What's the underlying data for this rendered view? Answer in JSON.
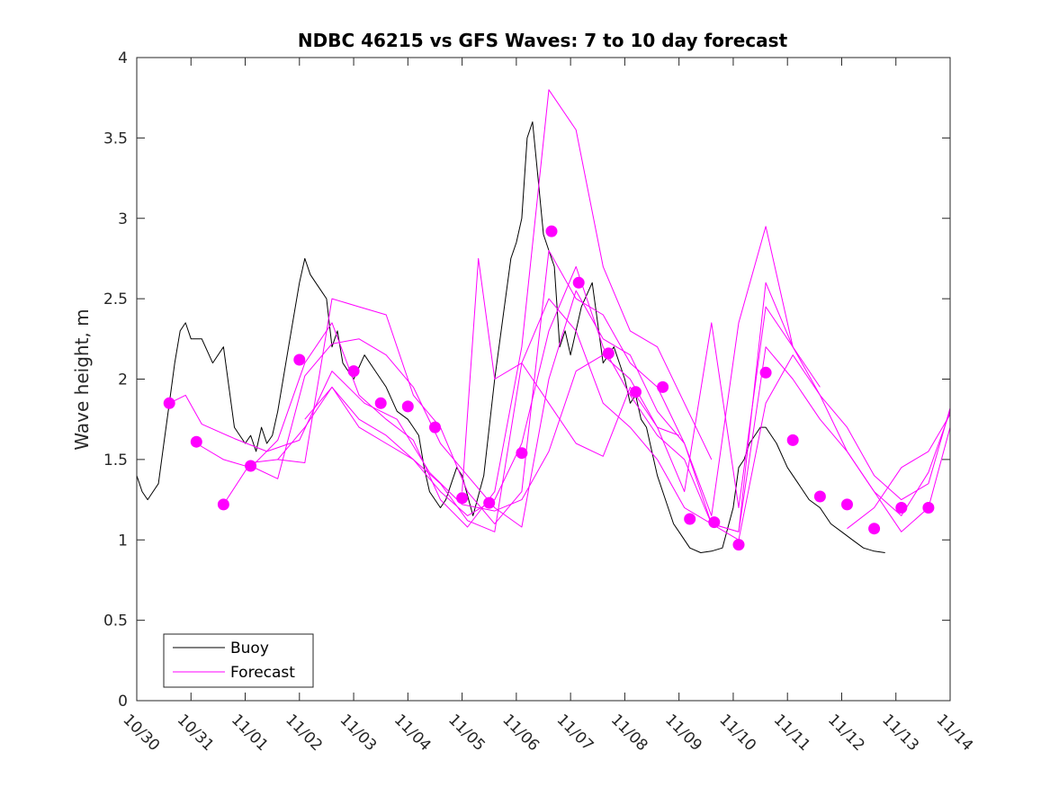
{
  "colors": {
    "buoy": "#000000",
    "forecast": "#ff00ff",
    "axis": "#262626"
  },
  "chart_data": {
    "type": "line",
    "title": "NDBC 46215 vs GFS Waves: 7 to 10 day forecast",
    "xlabel": "",
    "ylabel": "Wave height, m",
    "xlim": [
      0,
      15
    ],
    "ylim": [
      0,
      4
    ],
    "x_ticks": [
      0,
      1,
      2,
      3,
      4,
      5,
      6,
      7,
      8,
      9,
      10,
      11,
      12,
      13,
      14,
      15
    ],
    "x_tick_labels": [
      "10/30",
      "10/31",
      "11/01",
      "11/02",
      "11/03",
      "11/04",
      "11/05",
      "11/06",
      "11/07",
      "11/08",
      "11/09",
      "11/10",
      "11/11",
      "11/12",
      "11/13",
      "11/14"
    ],
    "y_ticks": [
      0,
      0.5,
      1,
      1.5,
      2,
      2.5,
      3,
      3.5,
      4
    ],
    "y_tick_labels": [
      "0",
      "0.5",
      "1",
      "1.5",
      "2",
      "2.5",
      "3",
      "3.5",
      "4"
    ],
    "legend": {
      "position": "bottom-left",
      "entries": [
        "Buoy",
        "Forecast"
      ]
    },
    "series": [
      {
        "name": "Buoy",
        "x": [
          0,
          0.1,
          0.2,
          0.3,
          0.4,
          0.5,
          0.6,
          0.7,
          0.8,
          0.9,
          1.0,
          1.2,
          1.4,
          1.6,
          1.8,
          1.9,
          2.0,
          2.1,
          2.2,
          2.3,
          2.4,
          2.5,
          2.6,
          2.8,
          3.0,
          3.1,
          3.2,
          3.3,
          3.4,
          3.5,
          3.6,
          3.7,
          3.8,
          3.9,
          4.0,
          4.2,
          4.4,
          4.6,
          4.8,
          5.0,
          5.1,
          5.2,
          5.3,
          5.4,
          5.5,
          5.6,
          5.7,
          5.8,
          5.9,
          6.0,
          6.2,
          6.4,
          6.6,
          6.8,
          6.9,
          7.0,
          7.1,
          7.2,
          7.3,
          7.4,
          7.5,
          7.6,
          7.7,
          7.8,
          7.9,
          8.0,
          8.2,
          8.4,
          8.6,
          8.8,
          8.9,
          9.0,
          9.1,
          9.2,
          9.3,
          9.4,
          9.5,
          9.6,
          9.7,
          9.8,
          9.9,
          10.0,
          10.2,
          10.4,
          10.6,
          10.8,
          11.0,
          11.1,
          11.2,
          11.3,
          11.4,
          11.5,
          11.6,
          11.8,
          12.0,
          12.2,
          12.4,
          12.6,
          12.8,
          13.0,
          13.2,
          13.4,
          13.6,
          13.8
        ],
        "values": [
          1.4,
          1.3,
          1.25,
          1.3,
          1.35,
          1.6,
          1.85,
          2.1,
          2.3,
          2.35,
          2.25,
          2.25,
          2.1,
          2.2,
          1.7,
          1.65,
          1.6,
          1.65,
          1.55,
          1.7,
          1.6,
          1.65,
          1.8,
          2.2,
          2.6,
          2.75,
          2.65,
          2.6,
          2.55,
          2.5,
          2.2,
          2.3,
          2.1,
          2.05,
          2.0,
          2.15,
          2.05,
          1.95,
          1.8,
          1.75,
          1.7,
          1.65,
          1.45,
          1.3,
          1.25,
          1.2,
          1.25,
          1.35,
          1.45,
          1.4,
          1.15,
          1.4,
          2.0,
          2.5,
          2.75,
          2.85,
          3.0,
          3.5,
          3.6,
          3.25,
          2.9,
          2.8,
          2.7,
          2.2,
          2.3,
          2.15,
          2.45,
          2.6,
          2.1,
          2.2,
          2.1,
          2.0,
          1.85,
          1.9,
          1.75,
          1.7,
          1.55,
          1.4,
          1.3,
          1.2,
          1.1,
          1.05,
          0.95,
          0.92,
          0.93,
          0.95,
          1.2,
          1.45,
          1.5,
          1.6,
          1.65,
          1.7,
          1.7,
          1.6,
          1.45,
          1.35,
          1.25,
          1.2,
          1.1,
          1.05,
          1.0,
          0.95,
          0.93,
          0.92
        ]
      },
      {
        "name": "Forecast",
        "x": [
          0.6,
          0.9,
          1.2,
          1.8,
          2.4,
          3.0,
          3.6,
          4.2,
          4.8,
          5.4,
          6.0,
          6.6,
          7.1,
          7.6,
          8.1,
          8.6,
          9.1,
          9.6,
          10.0
        ],
        "values": [
          1.85,
          1.9,
          1.72,
          1.63,
          1.55,
          1.62,
          2.05,
          1.85,
          1.75,
          1.42,
          1.22,
          1.18,
          1.25,
          1.55,
          2.05,
          2.15,
          2.0,
          1.7,
          1.65
        ]
      },
      {
        "name": "Forecast",
        "x": [
          1.1,
          1.6,
          2.1,
          2.6,
          3.1,
          3.6,
          4.1,
          4.6,
          5.1,
          5.6,
          6.1,
          6.6,
          7.1,
          7.6,
          8.1,
          8.6,
          9.1,
          9.6,
          10.1,
          10.6
        ],
        "values": [
          1.6,
          1.5,
          1.45,
          1.62,
          2.1,
          2.35,
          1.9,
          1.75,
          1.62,
          1.25,
          1.08,
          1.3,
          2.2,
          3.8,
          3.55,
          2.7,
          2.3,
          2.2,
          1.85,
          1.5
        ]
      },
      {
        "name": "Forecast",
        "x": [
          1.6,
          2.1,
          2.6,
          3.1,
          3.6,
          4.1,
          4.6,
          5.1,
          5.6,
          6.1,
          6.6,
          7.1,
          7.6,
          8.1,
          8.6,
          9.1,
          9.6,
          10.1,
          10.6,
          11.1,
          11.6,
          12.1
        ],
        "values": [
          1.22,
          1.48,
          1.5,
          1.48,
          2.5,
          2.45,
          2.4,
          1.9,
          1.7,
          1.3,
          1.1,
          1.3,
          2.8,
          2.5,
          2.4,
          2.1,
          1.95,
          1.6,
          1.15,
          2.35,
          2.95,
          2.2
        ]
      },
      {
        "name": "Forecast",
        "x": [
          2.1,
          2.6,
          3.1,
          3.6,
          4.1,
          4.6,
          5.1,
          5.6,
          6.1,
          6.6,
          7.1,
          7.6,
          8.1,
          8.6,
          9.1,
          9.6,
          10.1,
          10.6,
          11.1,
          11.6,
          12.1,
          12.6
        ],
        "values": [
          1.46,
          1.38,
          2.02,
          2.22,
          2.25,
          2.15,
          1.95,
          1.6,
          1.4,
          1.2,
          1.08,
          2.0,
          2.55,
          2.25,
          2.15,
          1.8,
          1.6,
          1.1,
          1.05,
          2.6,
          2.2,
          1.95
        ]
      },
      {
        "name": "Forecast",
        "x": [
          2.6,
          3.1,
          3.6,
          4.1,
          4.6,
          5.1,
          5.6,
          6.1,
          6.6,
          7.1,
          7.6,
          8.1,
          8.6,
          9.1,
          9.6,
          10.1,
          10.6,
          11.1,
          11.6,
          12.1,
          12.6,
          13.1,
          13.6,
          14.1,
          14.6,
          15.0
        ],
        "values": [
          1.5,
          1.7,
          1.95,
          1.75,
          1.65,
          1.5,
          1.3,
          1.15,
          1.25,
          1.6,
          2.3,
          2.7,
          2.2,
          1.9,
          1.65,
          1.5,
          1.1,
          1.0,
          1.85,
          2.15,
          1.9,
          1.7,
          1.4,
          1.25,
          1.35,
          1.82
        ]
      },
      {
        "name": "Forecast",
        "x": [
          3.1,
          3.6,
          4.1,
          4.6,
          5.1,
          5.6,
          6.1,
          6.6,
          7.1,
          7.6,
          8.1,
          8.6,
          9.1,
          9.6,
          10.1,
          10.6,
          11.1,
          11.6,
          12.1,
          12.6,
          13.1,
          13.6,
          14.1,
          14.6,
          15.0
        ],
        "values": [
          1.75,
          1.95,
          1.7,
          1.6,
          1.5,
          1.35,
          1.12,
          1.05,
          2.1,
          2.5,
          2.3,
          1.85,
          1.7,
          1.5,
          1.2,
          1.1,
          1.05,
          2.2,
          2.0,
          1.75,
          1.55,
          1.3,
          1.15,
          1.42,
          1.8
        ]
      },
      {
        "name": "Forecast",
        "x": [
          6.0,
          6.3,
          6.6,
          7.1,
          7.6,
          8.1,
          8.6,
          9.1,
          9.6,
          10.1,
          10.6,
          11.1,
          11.6,
          12.1,
          12.6,
          13.1,
          13.6,
          14.1,
          14.6,
          15.0
        ],
        "values": [
          1.3,
          2.75,
          2.0,
          2.1,
          1.85,
          1.6,
          1.52,
          1.95,
          1.7,
          1.3,
          2.35,
          1.2,
          2.45,
          2.2,
          1.9,
          1.55,
          1.3,
          1.05,
          1.2,
          1.7
        ]
      },
      {
        "name": "Forecast",
        "x": [
          13.1,
          13.6,
          14.1,
          14.6,
          15.0
        ],
        "values": [
          1.07,
          1.2,
          1.45,
          1.55,
          1.78
        ]
      }
    ],
    "forecast_markers": {
      "x": [
        0.6,
        1.1,
        1.6,
        2.1,
        3.0,
        4.0,
        4.5,
        5.0,
        5.5,
        6.0,
        6.5,
        7.1,
        7.65,
        8.15,
        8.7,
        9.2,
        9.7,
        10.2,
        10.65,
        11.1,
        11.6,
        12.1,
        12.6,
        13.1,
        13.6,
        14.1,
        14.6
      ],
      "y": [
        1.85,
        1.61,
        1.22,
        1.46,
        2.12,
        2.05,
        1.85,
        1.83,
        1.7,
        1.26,
        1.23,
        1.54,
        2.92,
        2.6,
        2.16,
        1.92,
        1.95,
        1.13,
        1.11,
        0.97,
        2.04,
        1.62,
        1.27,
        1.22,
        1.07,
        1.2,
        1.2
      ]
    }
  }
}
